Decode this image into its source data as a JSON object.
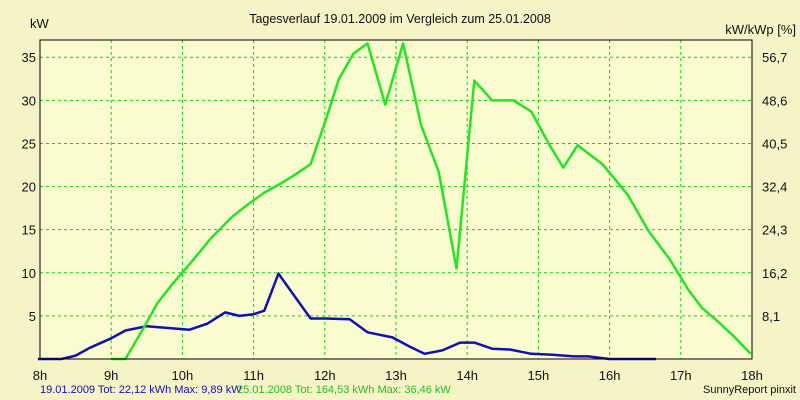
{
  "chart_data": {
    "type": "line",
    "title": "Tagesverlauf 19.01.2009 im Vergleich zum 25.01.2008",
    "ylabel_left": "kW",
    "ylabel_right": "kW/kWp [%]",
    "x_tick_labels": [
      "8h",
      "9h",
      "10h",
      "11h",
      "12h",
      "13h",
      "14h",
      "15h",
      "16h",
      "17h",
      "18h"
    ],
    "x_range": [
      8,
      18
    ],
    "y_left_ticks": [
      "5",
      "10",
      "15",
      "20",
      "25",
      "30",
      "35"
    ],
    "y_left_range": [
      0,
      37
    ],
    "y_right_ticks": [
      "8,1",
      "16,2",
      "24,3",
      "32,4",
      "40,5",
      "48,6",
      "56,7"
    ],
    "grid": true,
    "series": [
      {
        "name": "19.01.2009",
        "color": "#1010b8",
        "x": [
          7.97,
          8.3,
          8.5,
          8.7,
          9.0,
          9.2,
          9.5,
          9.8,
          10.1,
          10.35,
          10.6,
          10.8,
          11.0,
          11.15,
          11.35,
          11.6,
          11.8,
          12.0,
          12.35,
          12.6,
          12.95,
          13.2,
          13.4,
          13.65,
          13.9,
          14.1,
          14.35,
          14.6,
          14.9,
          15.2,
          15.5,
          15.7,
          16.0,
          16.65
        ],
        "y": [
          0.0,
          0.0,
          0.4,
          1.3,
          2.4,
          3.3,
          3.8,
          3.6,
          3.4,
          4.1,
          5.4,
          5.0,
          5.2,
          5.6,
          9.9,
          7.0,
          4.7,
          4.7,
          4.6,
          3.1,
          2.5,
          1.4,
          0.6,
          1.0,
          1.9,
          1.9,
          1.2,
          1.1,
          0.6,
          0.5,
          0.3,
          0.3,
          0.0,
          0.0
        ]
      },
      {
        "name": "25.01.2008",
        "color": "#22e622",
        "x": [
          9.0,
          9.2,
          9.45,
          9.65,
          9.85,
          10.15,
          10.4,
          10.7,
          10.95,
          11.15,
          11.35,
          11.55,
          11.8,
          12.0,
          12.2,
          12.4,
          12.6,
          12.85,
          13.1,
          13.35,
          13.6,
          13.85,
          14.1,
          14.35,
          14.65,
          14.9,
          15.15,
          15.35,
          15.55,
          15.9,
          16.25,
          16.55,
          16.85,
          17.1,
          17.3,
          17.5,
          17.75,
          17.98
        ],
        "y": [
          0.0,
          0.0,
          3.5,
          6.5,
          8.6,
          11.5,
          14.0,
          16.5,
          18.1,
          19.3,
          20.2,
          21.2,
          22.6,
          27.4,
          32.5,
          35.4,
          36.6,
          29.5,
          36.6,
          27.2,
          21.7,
          10.5,
          32.3,
          30.0,
          30.0,
          28.7,
          24.9,
          22.2,
          24.8,
          22.6,
          19.1,
          14.8,
          11.5,
          8.1,
          5.9,
          4.5,
          2.6,
          0.6
        ]
      }
    ]
  },
  "legend": {
    "line1": "19.01.2009 Tot: 22,12 kWh Max: 9,89 kW",
    "line2": "25.01.2008 Tot: 164,53 kWh Max: 36,46 kW",
    "credit": "SunnyReport pinxit"
  }
}
